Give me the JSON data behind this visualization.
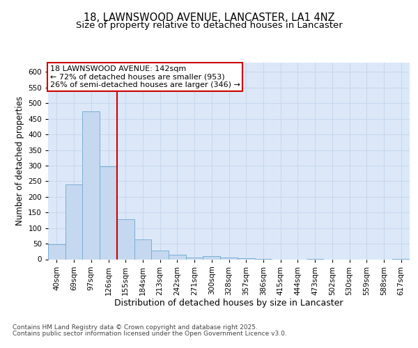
{
  "title_line1": "18, LAWNSWOOD AVENUE, LANCASTER, LA1 4NZ",
  "title_line2": "Size of property relative to detached houses in Lancaster",
  "xlabel": "Distribution of detached houses by size in Lancaster",
  "ylabel": "Number of detached properties",
  "categories": [
    "40sqm",
    "69sqm",
    "97sqm",
    "126sqm",
    "155sqm",
    "184sqm",
    "213sqm",
    "242sqm",
    "271sqm",
    "300sqm",
    "328sqm",
    "357sqm",
    "386sqm",
    "415sqm",
    "444sqm",
    "473sqm",
    "502sqm",
    "530sqm",
    "559sqm",
    "588sqm",
    "617sqm"
  ],
  "values": [
    48,
    240,
    473,
    297,
    129,
    63,
    27,
    15,
    5,
    10,
    5,
    3,
    1,
    0,
    0,
    2,
    0,
    0,
    0,
    0,
    2
  ],
  "bar_color": "#c5d8f0",
  "bar_edge_color": "#7aaed6",
  "grid_color": "#c8d8ee",
  "background_color": "#dce8f8",
  "vline_x": 3.5,
  "vline_color": "#cc0000",
  "annotation_title": "18 LAWNSWOOD AVENUE: 142sqm",
  "annotation_line2": "← 72% of detached houses are smaller (953)",
  "annotation_line3": "26% of semi-detached houses are larger (346) →",
  "annotation_box_facecolor": "#ffffff",
  "annotation_box_edgecolor": "#cc0000",
  "ylim": [
    0,
    630
  ],
  "yticks": [
    0,
    50,
    100,
    150,
    200,
    250,
    300,
    350,
    400,
    450,
    500,
    550,
    600
  ],
  "footnote1": "Contains HM Land Registry data © Crown copyright and database right 2025.",
  "footnote2": "Contains public sector information licensed under the Open Government Licence v3.0.",
  "title_fontsize": 10.5,
  "subtitle_fontsize": 9.5,
  "ylabel_fontsize": 8.5,
  "xlabel_fontsize": 9,
  "tick_fontsize": 7.5,
  "annot_fontsize": 8,
  "footnote_fontsize": 6.5
}
